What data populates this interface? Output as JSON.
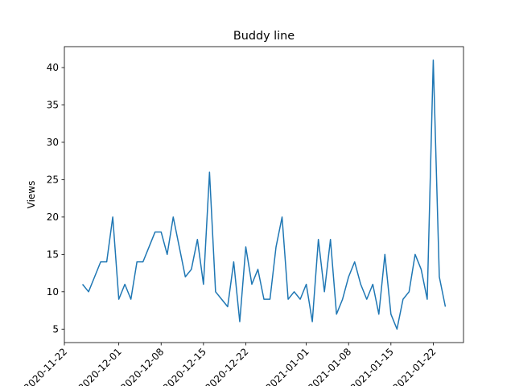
{
  "chart_data": {
    "type": "line",
    "title": "Buddy line",
    "ylabel": "Views",
    "x": [
      "2020-11-25",
      "2020-11-26",
      "2020-11-27",
      "2020-11-28",
      "2020-11-29",
      "2020-11-30",
      "2020-12-01",
      "2020-12-02",
      "2020-12-03",
      "2020-12-04",
      "2020-12-05",
      "2020-12-06",
      "2020-12-07",
      "2020-12-08",
      "2020-12-09",
      "2020-12-10",
      "2020-12-11",
      "2020-12-12",
      "2020-12-13",
      "2020-12-14",
      "2020-12-15",
      "2020-12-16",
      "2020-12-17",
      "2020-12-18",
      "2020-12-19",
      "2020-12-20",
      "2020-12-21",
      "2020-12-22",
      "2020-12-23",
      "2020-12-24",
      "2020-12-25",
      "2020-12-26",
      "2020-12-27",
      "2020-12-28",
      "2020-12-29",
      "2020-12-30",
      "2020-12-31",
      "2021-01-01",
      "2021-01-02",
      "2021-01-03",
      "2021-01-04",
      "2021-01-05",
      "2021-01-06",
      "2021-01-07",
      "2021-01-08",
      "2021-01-09",
      "2021-01-10",
      "2021-01-11",
      "2021-01-12",
      "2021-01-13",
      "2021-01-14",
      "2021-01-15",
      "2021-01-16",
      "2021-01-17",
      "2021-01-18",
      "2021-01-19",
      "2021-01-20",
      "2021-01-21",
      "2021-01-22",
      "2021-01-23",
      "2021-01-24"
    ],
    "series": [
      {
        "name": "Views",
        "color": "#1f77b4",
        "values": [
          11,
          10,
          12,
          14,
          14,
          20,
          9,
          11,
          9,
          14,
          14,
          16,
          18,
          18,
          15,
          20,
          16,
          12,
          13,
          17,
          11,
          26,
          10,
          9,
          8,
          14,
          6,
          16,
          11,
          13,
          9,
          9,
          16,
          20,
          9,
          10,
          9,
          11,
          6,
          17,
          10,
          17,
          7,
          9,
          12,
          14,
          11,
          9,
          11,
          7,
          15,
          7,
          5,
          9,
          10,
          15,
          13,
          9,
          41,
          12,
          8
        ]
      }
    ],
    "xlim": [
      "2020-11-22",
      "2021-01-27"
    ],
    "xticks": [
      "2020-11-22",
      "2020-12-01",
      "2020-12-08",
      "2020-12-15",
      "2020-12-22",
      "2021-01-01",
      "2021-01-08",
      "2021-01-15",
      "2021-01-22"
    ],
    "ylim": [
      3.2,
      42.8
    ],
    "yticks": [
      5,
      10,
      15,
      20,
      25,
      30,
      35,
      40
    ]
  }
}
